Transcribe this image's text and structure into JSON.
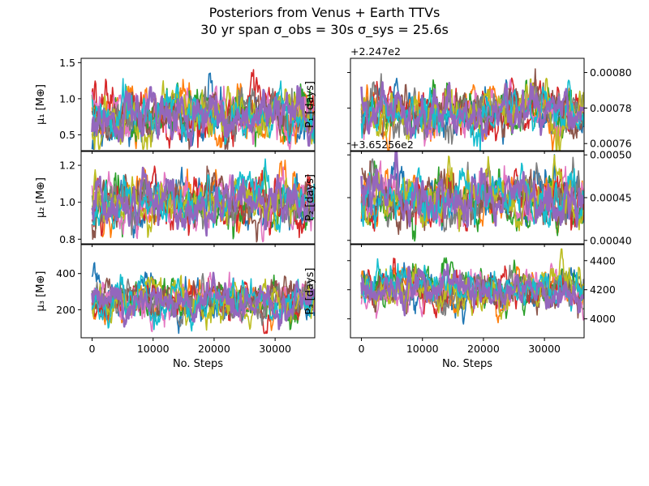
{
  "title_line1": "Posteriors from Venus + Earth TTVs",
  "title_line2": "30 yr span σ_obs = 30s σ_sys = 25.6s",
  "colors": [
    "#1f77b4",
    "#ff7f0e",
    "#2ca02c",
    "#d62728",
    "#e377c2",
    "#8c564b",
    "#7f7f7f",
    "#bcbd22",
    "#17becf",
    "#9467bd"
  ],
  "chart_data": [
    {
      "type": "line",
      "id": "mu1",
      "ylabel": "μ₁ [M⊕]",
      "xlabel": "",
      "xlim": [
        -1800,
        36500
      ],
      "ylim": [
        0.28,
        1.56
      ],
      "yticks": [
        0.5,
        1.0,
        1.5
      ],
      "ytick_labels": [
        "0.5",
        "1.0",
        "1.5"
      ],
      "xticks": [],
      "xtick_labels": [],
      "y_side": "left",
      "offset_text": "",
      "series_summary": {
        "n_walkers": 10,
        "n_steps": 36400,
        "center": 0.78,
        "spread": 0.45,
        "min": 0.3,
        "max": 1.48
      },
      "legend": "none",
      "grid": false
    },
    {
      "type": "line",
      "id": "P1",
      "ylabel": "P₁ [days]",
      "xlabel": "",
      "xlim": [
        -1800,
        36500
      ],
      "ylim": [
        0.000756,
        0.000808
      ],
      "yticks": [
        0.00076,
        0.00078,
        0.0008
      ],
      "ytick_labels": [
        "0.00076",
        "0.00078",
        "0.00080"
      ],
      "xticks": [],
      "xtick_labels": [],
      "y_side": "right",
      "offset_text": "+2.247e2",
      "series_summary": {
        "n_walkers": 10,
        "n_steps": 36400,
        "center": 0.000778,
        "spread": 1.7e-05
      },
      "legend": "none",
      "grid": false
    },
    {
      "type": "line",
      "id": "mu2",
      "ylabel": "μ₂ [M⊕]",
      "xlabel": "",
      "xlim": [
        -1800,
        36500
      ],
      "ylim": [
        0.775,
        1.275
      ],
      "yticks": [
        0.8,
        1.0,
        1.2
      ],
      "ytick_labels": [
        "0.8",
        "1.0",
        "1.2"
      ],
      "xticks": [],
      "xtick_labels": [],
      "y_side": "left",
      "offset_text": "",
      "series_summary": {
        "n_walkers": 10,
        "n_steps": 36400,
        "center": 1.0,
        "spread": 0.17,
        "min": 0.78,
        "max": 1.25
      },
      "legend": "none",
      "grid": false
    },
    {
      "type": "line",
      "id": "P2",
      "ylabel": "P₂ [days]",
      "xlabel": "",
      "xlim": [
        -1800,
        36500
      ],
      "ylim": [
        0.000396,
        0.000504
      ],
      "yticks": [
        0.0004,
        0.00045,
        0.0005
      ],
      "ytick_labels": [
        "0.00040",
        "0.00045",
        "0.00050"
      ],
      "xticks": [],
      "xtick_labels": [],
      "y_side": "right",
      "offset_text": "+3.65256e2",
      "series_summary": {
        "n_walkers": 10,
        "n_steps": 36400,
        "center": 0.00045,
        "spread": 4e-05
      },
      "legend": "none",
      "grid": false
    },
    {
      "type": "line",
      "id": "mu3",
      "ylabel": "μ₃ [M⊕]",
      "xlabel": "No. Steps",
      "xlim": [
        -1800,
        36500
      ],
      "ylim": [
        45,
        560
      ],
      "yticks": [
        200,
        400
      ],
      "ytick_labels": [
        "200",
        "400"
      ],
      "xticks": [
        0,
        10000,
        20000,
        30000
      ],
      "xtick_labels": [
        "0",
        "10000",
        "20000",
        "30000"
      ],
      "y_side": "left",
      "offset_text": "",
      "series_summary": {
        "n_walkers": 10,
        "n_steps": 36400,
        "center": 250,
        "spread": 140,
        "min": 70,
        "max": 540
      },
      "legend": "none",
      "grid": false
    },
    {
      "type": "line",
      "id": "P3",
      "ylabel": "P₃ [days]",
      "xlabel": "No. Steps",
      "xlim": [
        -1800,
        36500
      ],
      "ylim": [
        3870,
        4510
      ],
      "yticks": [
        4000,
        4200,
        4400
      ],
      "ytick_labels": [
        "4000",
        "4200",
        "4400"
      ],
      "xticks": [
        0,
        10000,
        20000,
        30000
      ],
      "xtick_labels": [
        "0",
        "10000",
        "20000",
        "30000"
      ],
      "y_side": "right",
      "offset_text": "",
      "series_summary": {
        "n_walkers": 10,
        "n_steps": 36400,
        "center": 4200,
        "spread": 170,
        "min": 3900,
        "max": 4480
      },
      "legend": "none",
      "grid": false
    }
  ]
}
